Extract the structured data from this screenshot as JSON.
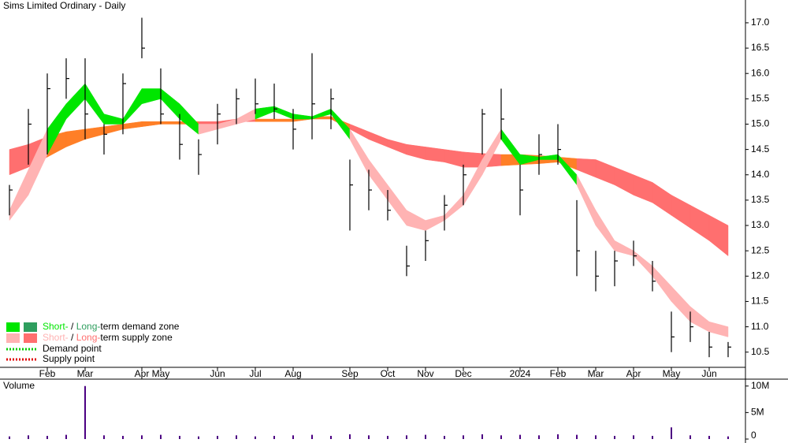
{
  "chart_data": [
    {
      "type": "ohlc",
      "title": "Sims Limited Ordinary - Daily",
      "categories": [
        null,
        null,
        "Feb",
        null,
        "Mar",
        null,
        null,
        "Apr",
        "May",
        null,
        null,
        "Jun",
        null,
        "Jul",
        null,
        "Aug",
        null,
        null,
        "Sep",
        null,
        "Oct",
        null,
        "Nov",
        null,
        "Dec",
        null,
        null,
        "2024",
        null,
        "Feb",
        null,
        "Mar",
        null,
        "Apr",
        null,
        "May",
        null,
        "Jun",
        null
      ],
      "high": [
        13.8,
        15.3,
        16.0,
        16.3,
        16.3,
        15.0,
        16.0,
        17.1,
        16.1,
        15.2,
        14.7,
        15.4,
        15.7,
        15.9,
        15.8,
        15.3,
        16.4,
        15.7,
        14.3,
        14.1,
        13.7,
        12.6,
        12.9,
        13.6,
        14.2,
        15.3,
        15.7,
        14.2,
        14.8,
        15.0,
        13.5,
        12.5,
        12.5,
        12.7,
        12.3,
        11.3,
        11.3,
        10.9,
        10.7
      ],
      "low": [
        13.2,
        14.2,
        14.4,
        15.5,
        14.7,
        14.4,
        14.8,
        16.3,
        15.0,
        14.3,
        14.0,
        14.6,
        15.0,
        15.2,
        15.1,
        14.5,
        14.7,
        14.9,
        12.9,
        13.3,
        13.1,
        12.0,
        12.3,
        12.9,
        13.4,
        14.4,
        14.7,
        13.2,
        14.0,
        14.2,
        12.0,
        11.7,
        11.8,
        12.2,
        11.7,
        10.5,
        10.7,
        10.4,
        10.4
      ],
      "close": [
        13.7,
        15.0,
        15.7,
        15.9,
        15.2,
        14.8,
        15.8,
        16.5,
        15.2,
        14.6,
        14.4,
        15.2,
        15.5,
        15.4,
        15.3,
        14.9,
        15.4,
        15.5,
        13.8,
        13.7,
        13.3,
        12.2,
        12.7,
        13.4,
        14.0,
        15.2,
        15.1,
        13.7,
        14.4,
        14.5,
        12.5,
        12.0,
        12.3,
        12.4,
        11.9,
        10.8,
        11.0,
        10.6,
        10.6
      ],
      "short_band": {
        "upper": [
          13.3,
          14.1,
          14.9,
          15.4,
          15.8,
          15.2,
          15.1,
          15.7,
          15.7,
          15.4,
          15.0,
          15.0,
          15.1,
          15.3,
          15.35,
          15.2,
          15.15,
          15.3,
          14.9,
          14.3,
          13.8,
          13.3,
          13.1,
          13.2,
          13.6,
          14.3,
          14.9,
          14.4,
          14.35,
          14.4,
          14.0,
          13.3,
          12.7,
          12.5,
          12.2,
          11.8,
          11.4,
          11.1,
          11.0
        ],
        "lower": [
          13.1,
          13.6,
          14.4,
          15.1,
          15.5,
          15.0,
          15.0,
          15.4,
          15.5,
          15.1,
          14.8,
          14.9,
          15.0,
          15.1,
          15.25,
          15.1,
          15.1,
          15.2,
          14.7,
          14.0,
          13.5,
          13.0,
          12.9,
          13.1,
          13.4,
          14.0,
          14.7,
          14.2,
          14.3,
          14.3,
          13.8,
          13.0,
          12.5,
          12.4,
          12.0,
          11.5,
          11.1,
          10.9,
          10.8
        ]
      },
      "long_band": {
        "upper": [
          14.5,
          14.6,
          14.75,
          14.85,
          14.9,
          14.95,
          15.0,
          15.05,
          15.05,
          15.05,
          15.05,
          15.05,
          15.1,
          15.1,
          15.1,
          15.1,
          15.15,
          15.15,
          15.0,
          14.85,
          14.7,
          14.6,
          14.55,
          14.5,
          14.45,
          14.42,
          14.4,
          14.4,
          14.38,
          14.35,
          14.32,
          14.3,
          14.15,
          14.0,
          13.85,
          13.6,
          13.4,
          13.2,
          13.0
        ],
        "lower": [
          14.0,
          14.15,
          14.35,
          14.55,
          14.7,
          14.8,
          14.9,
          14.95,
          15.0,
          15.0,
          15.0,
          15.0,
          15.05,
          15.05,
          15.05,
          15.05,
          15.1,
          15.1,
          14.9,
          14.7,
          14.55,
          14.4,
          14.3,
          14.25,
          14.15,
          14.15,
          14.18,
          14.2,
          14.22,
          14.25,
          14.1,
          13.95,
          13.8,
          13.6,
          13.45,
          13.2,
          12.95,
          12.7,
          12.4
        ]
      },
      "bar_color": "#000000",
      "transition_color": "#ff7f27",
      "ylim": [
        10.2,
        17.45
      ],
      "yticks": [
        {
          "value": 17,
          "label": "17.0"
        },
        16.5,
        {
          "value": 16,
          "label": "16.0"
        },
        15.5,
        {
          "value": 15,
          "label": "15.0"
        },
        14.5,
        {
          "value": 14,
          "label": "14.0"
        },
        13.5,
        {
          "value": 13,
          "label": "13.0"
        },
        12.5,
        {
          "value": 12,
          "label": "12.0"
        },
        11.5,
        {
          "value": 11,
          "label": "11.0"
        },
        10.5
      ],
      "legend": [
        {
          "colors": [
            "#00e600",
            "#2e9e5e"
          ],
          "parts": [
            "Short-",
            " / ",
            "Long-",
            "term demand zone"
          ]
        },
        {
          "colors": [
            "#ffb3b3",
            "#ff6f6f"
          ],
          "parts": [
            "Short-",
            " / ",
            "Long-",
            "term supply zone"
          ]
        }
      ],
      "points": [
        {
          "label": "Demand point",
          "color": "#00cc00"
        },
        {
          "label": "Supply point",
          "color": "#e00000"
        }
      ]
    },
    {
      "type": "volume",
      "title": "Volume",
      "color": "#4b0082",
      "values": [
        500000,
        700000,
        600000,
        800000,
        10000000,
        700000,
        600000,
        700000,
        800000,
        600000,
        500000,
        600000,
        700000,
        500000,
        600000,
        700000,
        800000,
        600000,
        900000,
        700000,
        600000,
        700000,
        800000,
        600000,
        700000,
        900000,
        700000,
        800000,
        700000,
        900000,
        800000,
        700000,
        600000,
        700000,
        600000,
        2200000,
        700000,
        600000,
        500000
      ],
      "ylim": [
        0,
        11300000
      ],
      "yticks": [
        {
          "value": 10000000,
          "label": "10M"
        },
        {
          "value": 5000000,
          "label": "5M"
        },
        0
      ]
    }
  ]
}
